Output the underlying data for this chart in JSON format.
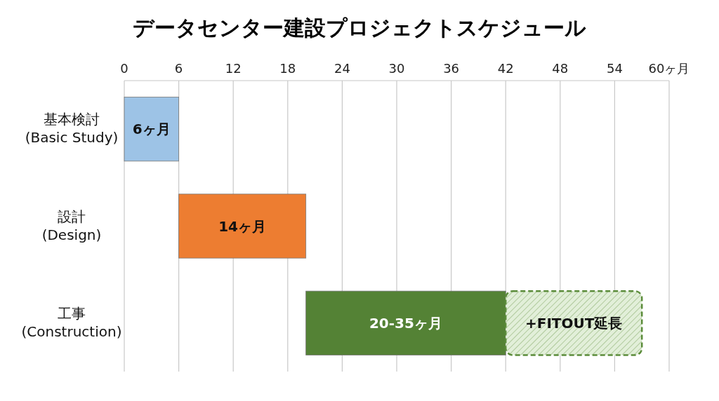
{
  "chart_data": {
    "type": "bar",
    "orientation": "horizontal",
    "title": "データセンター建設プロジェクトスケジュール",
    "categories": [
      "基本検討\n(Basic Study)",
      "設計\n(Design)",
      "工事\n(Construction)"
    ],
    "xlim": [
      0,
      60
    ],
    "xticks": [
      0,
      6,
      12,
      18,
      24,
      30,
      36,
      42,
      48,
      54,
      {
        "value": 60,
        "label": "60ヶ月"
      }
    ],
    "grid": "x",
    "series": [
      {
        "values": [
          6,
          14,
          22
        ],
        "base": [
          0,
          6,
          20
        ],
        "colors": [
          "#9dc3e6",
          "#ed7d31",
          "#548235"
        ],
        "value_labels": [
          "6ヶ月",
          "14ヶ月",
          "20-35ヶ月"
        ]
      },
      {
        "values": [
          null,
          null,
          15
        ],
        "base": [
          null,
          null,
          42
        ],
        "color": "#5b8c3a",
        "line_style": "dashed",
        "value_labels": [
          null,
          null,
          "+FITOUT延長"
        ]
      }
    ]
  }
}
